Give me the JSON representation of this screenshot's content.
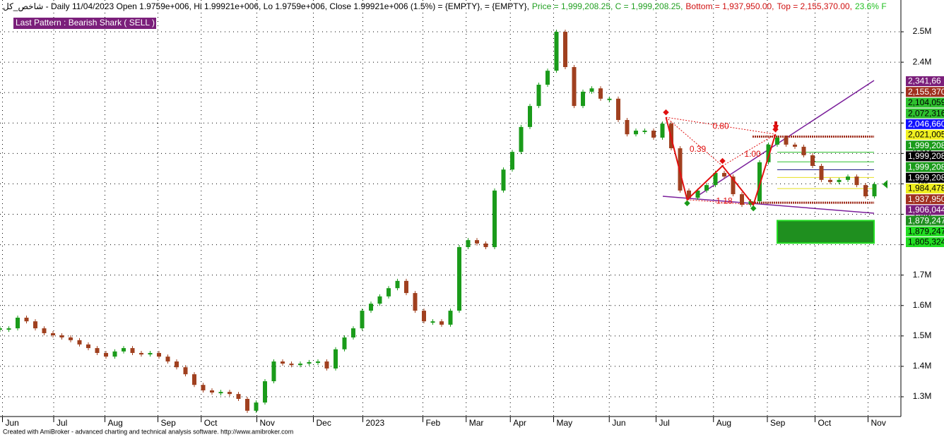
{
  "header": [
    {
      "text": "شاخص_کل - Daily 11/04/2023 Open 1.9759e+006, Hi 1.99921e+006, Lo 1.9759e+006, Close 1.99921e+006 (1.5%)   = {EMPTY},   = {EMPTY},",
      "color": "#000000"
    },
    {
      "text": "Price = 1,999,208.25, C = 1,999,208.25,",
      "color": "#22a022"
    },
    {
      "text": "Bottom = 1,937,950.00,",
      "color": "#d01010"
    },
    {
      "text": "Top = 2,155,370.00,",
      "color": "#d01010"
    },
    {
      "text": "23.6% F",
      "color": "#22c022"
    }
  ],
  "pattern_label": "Last Pattern : Bearish Shark ( SELL )",
  "footer": "Created with AmiBroker - advanced charting and technical analysis software. http://www.amibroker.com",
  "chart_data": {
    "type": "candlestick",
    "xlim": [
      0,
      102
    ],
    "xticks": [
      {
        "value": 0.6,
        "label": "Jun"
      },
      {
        "value": 6.4,
        "label": "Jul"
      },
      {
        "value": 12.2,
        "label": "Aug"
      },
      {
        "value": 18.2,
        "label": "Sep"
      },
      {
        "value": 23.1,
        "label": "Oct"
      },
      {
        "value": 29.4,
        "label": "Nov"
      },
      {
        "value": 35.8,
        "label": "Dec"
      },
      {
        "value": 41.4,
        "label": "2023"
      },
      {
        "value": 48.2,
        "label": "Feb"
      },
      {
        "value": 53.1,
        "label": "Mar"
      },
      {
        "value": 58.1,
        "label": "Apr"
      },
      {
        "value": 63,
        "label": "May"
      },
      {
        "value": 69.3,
        "label": "Jun"
      },
      {
        "value": 74.6,
        "label": "Jul"
      },
      {
        "value": 81.1,
        "label": "Aug"
      },
      {
        "value": 87.2,
        "label": "Sep"
      },
      {
        "value": 92.6,
        "label": "Oct"
      },
      {
        "value": 98.6,
        "label": "Nov"
      }
    ],
    "ylim": [
      1235000,
      2604500
    ],
    "yticks": [
      {
        "value": 1300000,
        "label": "1.3M"
      },
      {
        "value": 1400000,
        "label": "1.4M"
      },
      {
        "value": 1500000,
        "label": "1.5M"
      },
      {
        "value": 1600000,
        "label": "1.6M"
      },
      {
        "value": 1700000,
        "label": "1.7M"
      },
      {
        "value": 1800000,
        "label": "1.8M"
      },
      {
        "value": 1900000,
        "label": "1.9M"
      },
      {
        "value": 2000000,
        "label": "2M"
      },
      {
        "value": 2100000,
        "label": "2.1M"
      },
      {
        "value": 2200000,
        "label": "2.2M"
      },
      {
        "value": 2300000,
        "label": "2.3M"
      },
      {
        "value": 2400000,
        "label": "2.4M"
      },
      {
        "value": 2500000,
        "label": "2.5M"
      }
    ],
    "grid": true,
    "up_color": "#1a9b1a",
    "down_color": "#a0401f",
    "values": [
      1525000,
      1525000,
      1560000,
      1548000,
      1525000,
      1509000,
      1502000,
      1495000,
      1486000,
      1472000,
      1460000,
      1444000,
      1432000,
      1449000,
      1460000,
      1444000,
      1439000,
      1444000,
      1432000,
      1416000,
      1397000,
      1374000,
      1339000,
      1321000,
      1314000,
      1316000,
      1309000,
      1293000,
      1254000,
      1281000,
      1351000,
      1416000,
      1409000,
      1404000,
      1409000,
      1414000,
      1416000,
      1393000,
      1456000,
      1495000,
      1525000,
      1583000,
      1606000,
      1630000,
      1657000,
      1681000,
      1641000,
      1583000,
      1548000,
      1548000,
      1537000,
      1583000,
      1792000,
      1815000,
      1804000,
      1792000,
      1978000,
      2047000,
      2105000,
      2187000,
      2256000,
      2326000,
      2372000,
      2500000,
      2384000,
      2256000,
      2303000,
      2314000,
      2280000,
      2280000,
      2210000,
      2163000,
      2175000,
      2175000,
      2152000,
      2198000,
      2117000,
      1978000,
      1954000,
      1978000,
      1996000,
      2036000,
      2024000,
      1966000,
      1931000,
      1943000,
      2071000,
      2129000,
      2152000,
      2129000,
      2122000,
      2094000,
      2059000,
      2013000,
      2006000,
      2013000,
      2024000,
      1996000,
      1959000,
      1999208
    ],
    "pattern": {
      "color": "#e01010",
      "points": [
        {
          "x": 75.4,
          "y": 2219000
        },
        {
          "x": 77.8,
          "y": 1948000
        },
        {
          "x": 81.8,
          "y": 2059000
        },
        {
          "x": 85.3,
          "y": 1931000
        },
        {
          "x": 87.8,
          "y": 2163000
        }
      ]
    },
    "annotations": [
      {
        "text": "0.80",
        "x": 81.6,
        "y": 2188000
      },
      {
        "text": "0.39",
        "x": 79,
        "y": 2113000
      },
      {
        "text": "1.00",
        "x": 85.2,
        "y": 2096000
      },
      {
        "text": "1.18",
        "x": 82,
        "y": 1942000
      }
    ],
    "levels": [
      {
        "value": 2155370,
        "color": "#a0301f",
        "dotted": true
      },
      {
        "value": 2104059,
        "color": "#2ec02e"
      },
      {
        "value": 2072316,
        "color": "#2ec02e"
      },
      {
        "value": 2046660,
        "color": "#101080"
      },
      {
        "value": 2021005,
        "color": "#e8e020"
      },
      {
        "value": 1984478,
        "color": "#e8e020"
      },
      {
        "value": 1937950,
        "color": "#a0301f",
        "dotted": true
      }
    ],
    "zone": {
      "low": 1805324,
      "high": 1879247,
      "color": "#1f8f1f"
    },
    "price_labels": [
      {
        "label": "2,341,66",
        "bg": "#7b1f7b",
        "fg": "#ffffff"
      },
      {
        "label": "2,155,370",
        "bg": "#a0301f",
        "fg": "#ffffff"
      },
      {
        "label": "2,104,059",
        "bg": "#2ec02e",
        "fg": "#000000"
      },
      {
        "label": "2,072,316",
        "bg": "#2ec02e",
        "fg": "#000000"
      },
      {
        "label": "2,046,660",
        "bg": "#1010ff",
        "fg": "#ffffff"
      },
      {
        "label": "2,021,005",
        "bg": "#f0f020",
        "fg": "#000000"
      },
      {
        "label": "1,999,208",
        "bg": "#1a9b1a",
        "fg": "#ffffff"
      },
      {
        "label": "1,999,208",
        "bg": "#000000",
        "fg": "#ffffff"
      },
      {
        "label": "1,999,208",
        "bg": "#1a9b1a",
        "fg": "#ffffff"
      },
      {
        "label": "1,999,208",
        "bg": "#000000",
        "fg": "#ffffff"
      },
      {
        "label": "1,984,478",
        "bg": "#f0f020",
        "fg": "#000000"
      },
      {
        "label": "1,937,950",
        "bg": "#a0301f",
        "fg": "#ffffff"
      },
      {
        "label": "1,906,044",
        "bg": "#7b1f7b",
        "fg": "#ffffff"
      },
      {
        "label": "1,879,247",
        "bg": "#1f8f1f",
        "fg": "#ffffff"
      },
      {
        "label": "1,879,247",
        "bg": "#22dd22",
        "fg": "#000000"
      },
      {
        "label": "1,805,324",
        "bg": "#22dd22",
        "fg": "#000000"
      }
    ]
  }
}
